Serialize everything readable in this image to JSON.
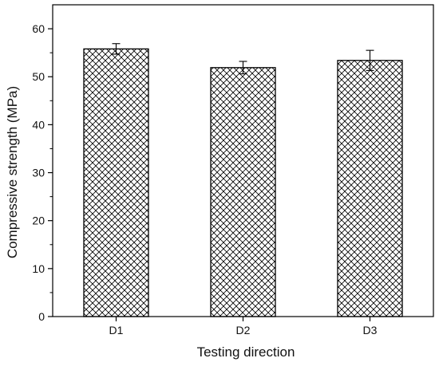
{
  "chart_data": {
    "type": "bar",
    "title": "",
    "xlabel": "Testing direction",
    "ylabel": "Compressive strength (MPa)",
    "categories": [
      "D1",
      "D2",
      "D3"
    ],
    "values": [
      55.8,
      51.9,
      53.4
    ],
    "error": [
      1.1,
      1.3,
      2.1
    ],
    "ylim": [
      0,
      65
    ],
    "yticks": [
      0,
      10,
      20,
      30,
      40,
      50,
      60
    ],
    "yticks_labels": [
      "0",
      "10",
      "20",
      "30",
      "40",
      "50",
      "60"
    ],
    "grid": false,
    "legend": "none",
    "bar_pattern": "crosshatch",
    "bar_color": "#000000"
  }
}
